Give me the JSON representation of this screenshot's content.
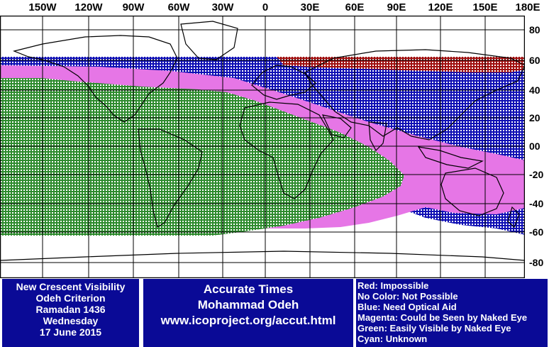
{
  "map": {
    "longitude_labels": [
      "150W",
      "120W",
      "90W",
      "60W",
      "30W",
      "0",
      "30E",
      "60E",
      "90E",
      "120E",
      "150E",
      "180E"
    ],
    "latitude_labels": [
      "80",
      "60",
      "40",
      "20",
      "00",
      "-20",
      "-40",
      "-60",
      "-80"
    ],
    "colors": {
      "impossible": "#a01010",
      "optical_aid": "#1010b4",
      "naked_eye_maybe": "#e676e6",
      "easily_visible": "#2e8b2e",
      "grid_line": "#000000",
      "land_outline": "#000000"
    }
  },
  "info": {
    "title_lines": [
      "New Crescent Visibility",
      "Odeh Criterion",
      "Ramadan 1436",
      "Wednesday",
      "17 June 2015"
    ],
    "credit_lines": [
      "Accurate Times",
      "Mohammad Odeh",
      "www.icoproject.org/accut.html"
    ],
    "legend_lines": [
      "Red: Impossible",
      "No Color: Not Possible",
      "Blue: Need Optical Aid",
      "Magenta: Could be Seen by Naked Eye",
      "Green: Easily Visible by Naked Eye",
      "Cyan: Unknown"
    ],
    "panel_color": "#0a0a96"
  }
}
